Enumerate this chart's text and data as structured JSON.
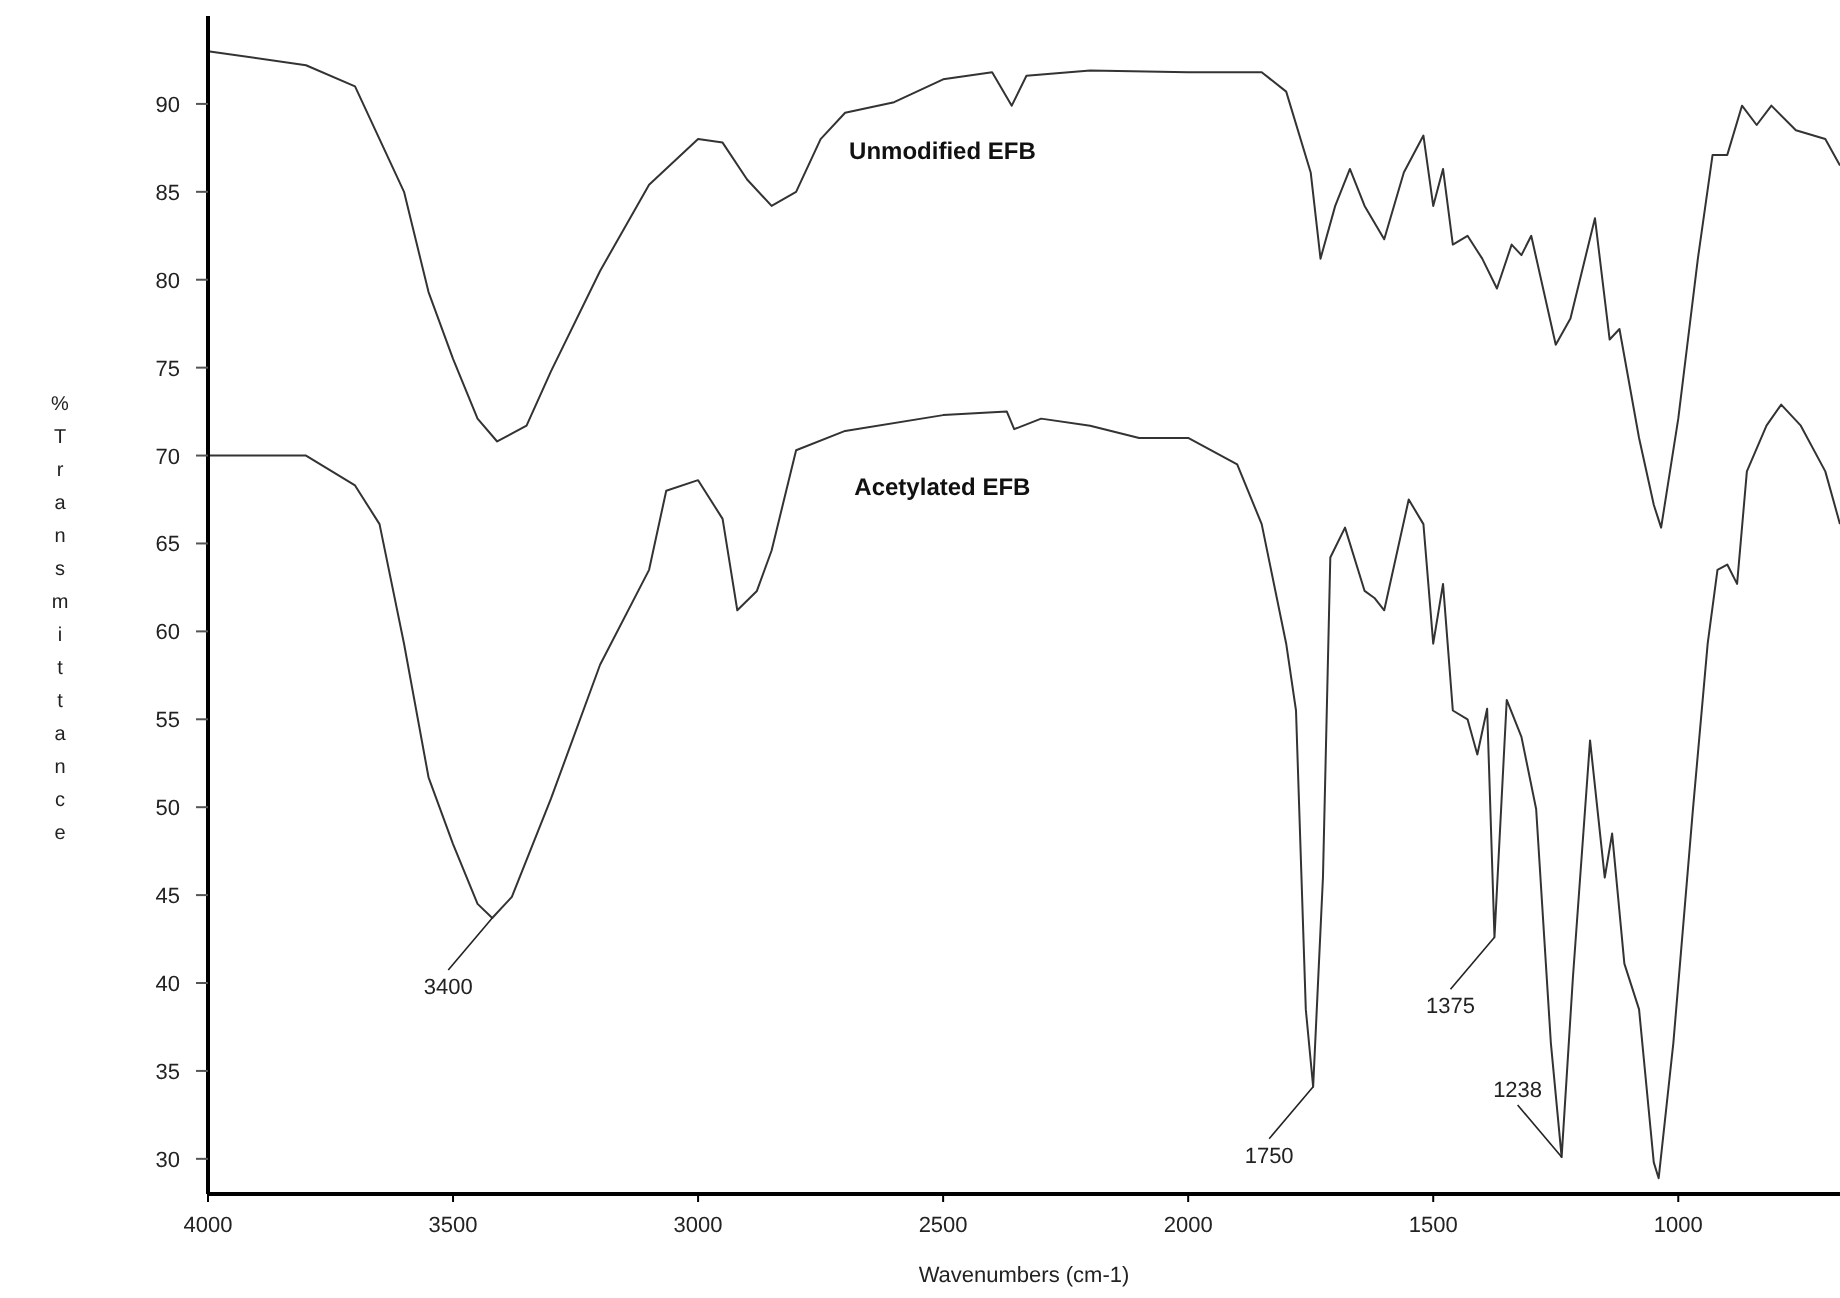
{
  "chart_data": {
    "type": "line",
    "xlabel": "Wavenumbers (cm-1)",
    "ylabel": "%Transmittance",
    "xlim": [
      4000,
      670
    ],
    "xticks": [
      4000,
      3500,
      3000,
      2500,
      2000,
      1500,
      1000
    ],
    "ylim": [
      28,
      95
    ],
    "yticks": [
      30,
      35,
      40,
      45,
      50,
      55,
      60,
      65,
      70,
      75,
      80,
      85,
      90
    ],
    "grid": false,
    "marker": "none",
    "line_style": "solid",
    "series": [
      {
        "name": "Unmodified EFB",
        "color": "#333333",
        "x": [
          4000,
          3800,
          3700,
          3650,
          3600,
          3550,
          3500,
          3450,
          3410,
          3350,
          3300,
          3200,
          3100,
          3000,
          2950,
          2900,
          2850,
          2800,
          2750,
          2700,
          2600,
          2500,
          2400,
          2360,
          2330,
          2200,
          2000,
          1850,
          1800,
          1750,
          1730,
          1700,
          1670,
          1640,
          1600,
          1560,
          1520,
          1500,
          1480,
          1460,
          1430,
          1400,
          1370,
          1340,
          1320,
          1300,
          1250,
          1220,
          1170,
          1140,
          1120,
          1080,
          1050,
          1035,
          1000,
          960,
          930,
          900,
          870,
          840,
          810,
          760,
          700,
          670
        ],
        "values": [
          93.0,
          92.2,
          91.0,
          88,
          85,
          79.3,
          75.5,
          72.1,
          70.8,
          71.7,
          74.8,
          80.5,
          85.4,
          88,
          87.8,
          85.7,
          84.2,
          85,
          88,
          89.5,
          90.1,
          91.4,
          91.8,
          89.9,
          91.6,
          91.9,
          91.8,
          91.8,
          90.7,
          86.1,
          81.2,
          84.2,
          86.3,
          84.2,
          82.3,
          86.1,
          88.2,
          84.2,
          86.3,
          82,
          82.5,
          81.2,
          79.5,
          82,
          81.4,
          82.5,
          76.3,
          77.8,
          83.5,
          76.6,
          77.2,
          71,
          67.2,
          65.9,
          72.1,
          81.2,
          87.1,
          87.1,
          89.9,
          88.8,
          89.9,
          88.5,
          88,
          86.5
        ]
      },
      {
        "name": "Acetylated EFB",
        "color": "#333333",
        "x": [
          4000,
          3800,
          3700,
          3650,
          3600,
          3550,
          3500,
          3450,
          3420,
          3380,
          3300,
          3200,
          3100,
          3065,
          3000,
          2950,
          2920,
          2880,
          2850,
          2800,
          2700,
          2500,
          2370,
          2355,
          2300,
          2200,
          2100,
          2000,
          1900,
          1850,
          1800,
          1780,
          1760,
          1745,
          1725,
          1710,
          1680,
          1640,
          1620,
          1600,
          1550,
          1520,
          1500,
          1480,
          1460,
          1430,
          1410,
          1390,
          1375,
          1350,
          1320,
          1290,
          1260,
          1238,
          1215,
          1180,
          1150,
          1135,
          1110,
          1080,
          1050,
          1040,
          1010,
          970,
          940,
          920,
          900,
          880,
          860,
          820,
          790,
          750,
          700,
          670
        ],
        "values": [
          70.0,
          70,
          68.3,
          66.1,
          59.3,
          51.7,
          47.9,
          44.5,
          43.7,
          44.9,
          50.5,
          58.1,
          63.5,
          68,
          68.6,
          66.4,
          61.2,
          62.3,
          64.6,
          70.3,
          71.4,
          72.3,
          72.5,
          71.5,
          72.1,
          71.7,
          71,
          71,
          69.5,
          66.1,
          59.3,
          55.5,
          38.5,
          34.1,
          46,
          64.2,
          65.9,
          62.3,
          61.9,
          61.2,
          67.5,
          66.1,
          59.3,
          62.7,
          55.5,
          55,
          53,
          55.6,
          42.6,
          56.1,
          54,
          49.9,
          36.6,
          30.1,
          40.3,
          53.8,
          46,
          48.5,
          41.1,
          38.5,
          29.8,
          28.9,
          36.6,
          49.9,
          59.3,
          63.5,
          63.8,
          62.7,
          69.1,
          71.7,
          72.9,
          71.7,
          69.1,
          66.1
        ]
      }
    ],
    "annotations": [
      {
        "text": "3400",
        "x": 3420,
        "y": 43.7
      },
      {
        "text": "1750",
        "x": 1745,
        "y": 34.1
      },
      {
        "text": "1375",
        "x": 1375,
        "y": 42.6
      },
      {
        "text": "1238",
        "x": 1238,
        "y": 30.1
      }
    ]
  }
}
